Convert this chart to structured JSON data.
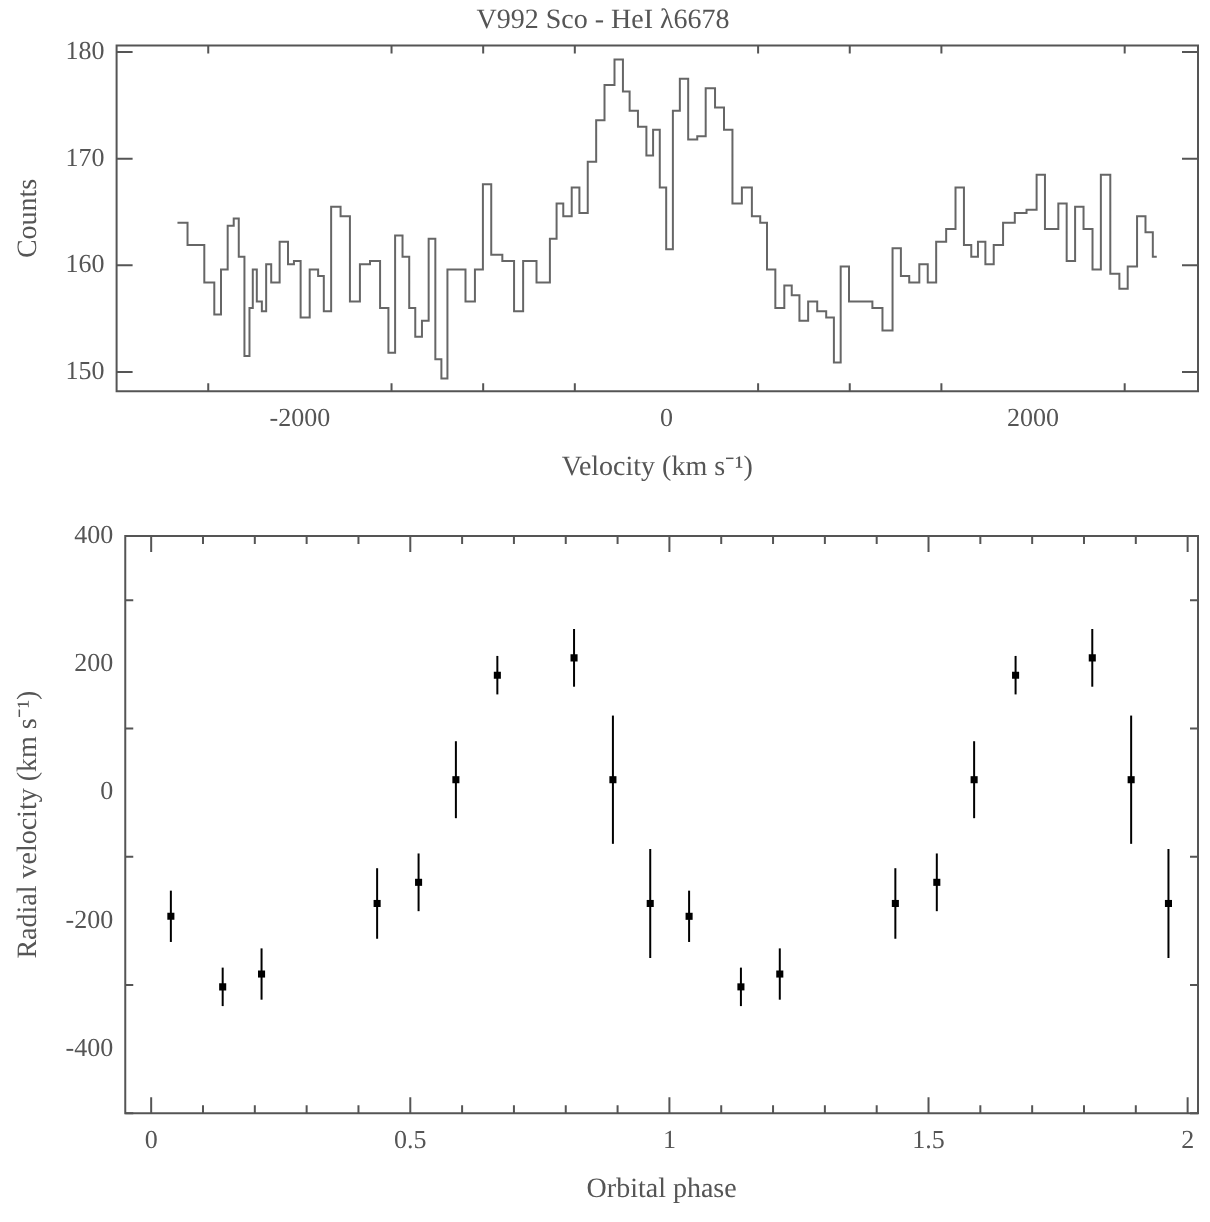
{
  "chart_data": [
    {
      "type": "step",
      "title": "V992 Sco - HeI λ6678",
      "xlabel": "Velocity (km s⁻¹)",
      "ylabel": "Counts",
      "series": [
        {
          "color": "#666666",
          "x": [
            -2668,
            -2558,
            -2485,
            -2449,
            -2412,
            -2376,
            -2346,
            -2321,
            -2284,
            -2266,
            -2248,
            -2222,
            -2193,
            -2175,
            -2138,
            -2083,
            -2047,
            -2018,
            -1974,
            -1919,
            -1882,
            -1857,
            -1802,
            -1754,
            -1700,
            -1645,
            -1590,
            -1535,
            -1499,
            -1462,
            -1418,
            -1389,
            -1352,
            -1316,
            -1279,
            -1243,
            -1213,
            -1177,
            -1126,
            -1067,
            -1023,
            -980,
            -932,
            -859,
            -804,
            -760,
            -658,
            -614,
            -585,
            -541,
            -493,
            -457,
            -402,
            -365,
            -311,
            -256,
            -219,
            -183,
            -128,
            -91,
            -55,
            -18,
            15,
            55,
            91,
            146,
            190,
            238,
            292,
            336,
            384,
            439,
            493,
            530,
            567,
            621,
            665,
            702,
            749,
            797,
            848,
            895,
            932,
            969,
            1023,
            1096,
            1151,
            1206,
            1261,
            1297,
            1352,
            1407,
            1444,
            1499,
            1553,
            1601,
            1645,
            1681,
            1718,
            1762,
            1809,
            1864,
            1937,
            1992,
            2047,
            2083,
            2120,
            2156,
            2211,
            2248,
            2303,
            2346,
            2394,
            2449,
            2493,
            2540,
            2595,
            2632,
            2675
          ],
          "values": [
            164.0,
            161.9,
            158.4,
            155.4,
            159.6,
            163.7,
            164.4,
            160.8,
            151.5,
            156.0,
            159.6,
            156.6,
            155.7,
            160.1,
            158.4,
            162.2,
            160.1,
            160.4,
            155.1,
            159.6,
            159.0,
            155.7,
            165.5,
            164.6,
            156.6,
            160.1,
            160.4,
            156.0,
            151.8,
            162.8,
            160.8,
            156.0,
            153.3,
            154.8,
            162.5,
            151.2,
            149.4,
            159.6,
            159.6,
            156.6,
            159.6,
            167.6,
            161.0,
            160.4,
            155.7,
            160.4,
            158.4,
            162.5,
            165.8,
            164.6,
            167.3,
            164.9,
            169.7,
            173.6,
            176.9,
            179.3,
            176.3,
            174.5,
            173.0,
            170.3,
            172.7,
            167.3,
            161.5,
            174.5,
            177.5,
            171.8,
            172.1,
            176.6,
            174.8,
            172.7,
            165.8,
            167.3,
            164.6,
            164.0,
            159.6,
            156.0,
            158.1,
            157.2,
            154.8,
            156.6,
            155.7,
            155.1,
            150.9,
            159.9,
            156.6,
            156.6,
            156.0,
            153.9,
            161.6,
            159.0,
            158.4,
            160.1,
            158.4,
            162.2,
            163.4,
            167.3,
            161.9,
            160.8,
            162.2,
            160.1,
            161.9,
            164.0,
            164.9,
            165.2,
            168.5,
            163.4,
            163.4,
            165.8,
            160.4,
            165.5,
            163.4,
            159.6,
            168.5,
            159.2,
            157.8,
            159.9,
            164.6,
            163.1,
            160.8
          ]
        }
      ],
      "xlim": [
        -3000,
        2900
      ],
      "ylim": [
        148.2,
        180.6
      ],
      "xticks": [
        {
          "value": -2500,
          "label": null
        },
        -2000,
        {
          "value": -1500,
          "label": null
        },
        {
          "value": -1000,
          "label": null
        },
        {
          "value": -500,
          "label": null
        },
        0,
        {
          "value": 500,
          "label": null
        },
        {
          "value": 1000,
          "label": null
        },
        {
          "value": 1500,
          "label": null
        },
        2000,
        {
          "value": 2500,
          "label": null
        }
      ],
      "yticks": [
        150,
        160,
        170,
        180
      ]
    },
    {
      "type": "scatter",
      "xlabel": "Orbital phase",
      "ylabel": "Radial velocity (km s⁻¹)",
      "marker": "square",
      "series": [
        {
          "color": "#000000",
          "x": [
            0.038,
            0.138,
            0.213,
            0.436,
            0.516,
            0.588,
            0.668,
            0.816,
            0.891,
            0.963,
            1.038,
            1.138,
            1.213,
            1.436,
            1.516,
            1.588,
            1.668,
            1.816,
            1.891,
            1.963
          ],
          "values": [
            -193,
            -303,
            -283,
            -173,
            -140,
            20,
            183,
            210,
            20,
            -173,
            -193,
            -303,
            -283,
            -173,
            -140,
            20,
            183,
            210,
            20,
            -173
          ],
          "errors": [
            40,
            30,
            40,
            55,
            45,
            60,
            30,
            45,
            100,
            85,
            40,
            30,
            40,
            55,
            45,
            60,
            30,
            45,
            100,
            85
          ]
        }
      ],
      "xlim": [
        -0.05,
        2.02
      ],
      "ylim": [
        -500,
        400
      ],
      "xticks": [
        0,
        {
          "value": 0.1,
          "label": null
        },
        {
          "value": 0.2,
          "label": null
        },
        {
          "value": 0.3,
          "label": null
        },
        {
          "value": 0.4,
          "label": null
        },
        0.5,
        {
          "value": 0.6,
          "label": null
        },
        {
          "value": 0.7,
          "label": null
        },
        {
          "value": 0.8,
          "label": null
        },
        {
          "value": 0.9,
          "label": null
        },
        1,
        {
          "value": 1.1,
          "label": null
        },
        {
          "value": 1.2,
          "label": null
        },
        {
          "value": 1.3,
          "label": null
        },
        {
          "value": 1.4,
          "label": null
        },
        1.5,
        {
          "value": 1.6,
          "label": null
        },
        {
          "value": 1.7,
          "label": null
        },
        {
          "value": 1.8,
          "label": null
        },
        {
          "value": 1.9,
          "label": null
        },
        2
      ],
      "yticks": [
        {
          "value": -500,
          "label": null
        },
        -400,
        {
          "value": -300,
          "label": null
        },
        -200,
        {
          "value": -100,
          "label": null
        },
        0,
        {
          "value": 100,
          "label": null
        },
        200,
        {
          "value": 300,
          "label": null
        },
        400
      ]
    }
  ]
}
